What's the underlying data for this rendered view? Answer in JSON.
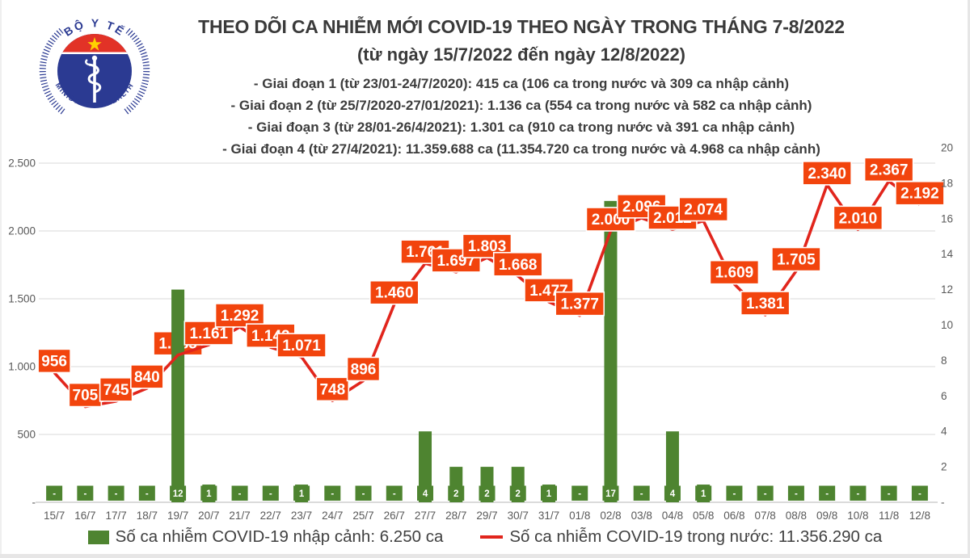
{
  "header": {
    "title": "THEO DÕI CA NHIỄM MỚI COVID-19 THEO NGÀY TRONG THÁNG 7-8/2022",
    "subtitle": "(từ ngày 15/7/2022 đến ngày 12/8/2022)",
    "phases": [
      "- Giai đoạn 1 (từ 23/01-24/7/2020): 415 ca (106 ca trong nước và 309 ca nhập cảnh)",
      "- Giai đoạn 2 (từ 25/7/2020-27/01/2021): 1.136 ca (554 ca trong nước và 582 ca nhập cảnh)",
      "- Giai đoạn 3 (từ 28/01-26/4/2021): 1.301 ca (910 ca trong nước và 391 ca nhập cảnh)",
      "- Giai đoạn 4 (từ 27/4/2021): 11.359.688 ca (11.354.720 ca trong nước và 4.968 ca nhập cảnh)"
    ]
  },
  "logo": {
    "top_text": "BỘ Y TẾ",
    "bottom_text": "MINISTRY OF HEALTH"
  },
  "legend": {
    "imported_label": "Số ca nhiễm COVID-19 nhập cảnh: 6.250 ca",
    "domestic_label": "Số ca nhiễm COVID-19 trong nước: 11.356.290 ca"
  },
  "colors": {
    "bar_green": "#4e8430",
    "line_red": "#e1251c",
    "label_orange": "#f2440d",
    "grid": "#d9d9d9",
    "axis_line": "#cfcfcf",
    "axis_text": "#595959",
    "logo_blue": "#2b3a92",
    "logo_red": "#e23227",
    "star_yellow": "#ffd200"
  },
  "chart_data": {
    "type": "bar",
    "subtype": "combo-bar-line",
    "categories": [
      "15/7",
      "16/7",
      "17/7",
      "18/7",
      "19/7",
      "20/7",
      "21/7",
      "22/7",
      "23/7",
      "24/7",
      "25/7",
      "26/7",
      "27/7",
      "28/7",
      "29/7",
      "30/7",
      "31/7",
      "01/8",
      "02/8",
      "03/8",
      "04/8",
      "05/8",
      "06/8",
      "07/8",
      "08/8",
      "09/8",
      "10/8",
      "11/8",
      "12/8"
    ],
    "series": [
      {
        "name": "Số ca nhiễm COVID-19 nhập cảnh",
        "type": "bar",
        "axis": "right",
        "values": [
          0,
          0,
          0,
          0,
          12,
          1,
          0,
          0,
          1,
          0,
          0,
          0,
          4,
          2,
          2,
          2,
          1,
          0,
          17,
          0,
          4,
          1,
          0,
          0,
          0,
          0,
          0,
          0,
          0
        ],
        "labels": [
          "-",
          "-",
          "-",
          "-",
          "12",
          "1",
          "-",
          "-",
          "1",
          "-",
          "-",
          "-",
          "4",
          "2",
          "2",
          "2",
          "1",
          "-",
          "17",
          "-",
          "4",
          "1",
          "-",
          "-",
          "-",
          "-",
          "-",
          "-",
          "-"
        ]
      },
      {
        "name": "Số ca nhiễm COVID-19 trong nước",
        "type": "line",
        "axis": "left",
        "values": [
          956,
          705,
          745,
          840,
          1085,
          1161,
          1292,
          1142,
          1071,
          748,
          896,
          1460,
          1761,
          1697,
          1803,
          1668,
          1477,
          1377,
          2000,
          2096,
          2012,
          2074,
          1609,
          1381,
          1705,
          2340,
          2010,
          2367,
          2192
        ],
        "labels": [
          "956",
          "705",
          "745",
          "840",
          "1.085",
          "1.161",
          "1.292",
          "1.142",
          "1.071",
          "748",
          "896",
          "1.460",
          "1.761",
          "1.697",
          "1.803",
          "1.668",
          "1.477",
          "1.377",
          "2.000",
          "2.096",
          "2.012",
          "2.074",
          "1.609",
          "1.381",
          "1.705",
          "2.340",
          "2.010",
          "2.367",
          "2.192"
        ]
      }
    ],
    "left_axis": {
      "ticks": [
        "-",
        "500",
        "1.000",
        "1.500",
        "2.000",
        "2.500"
      ],
      "min": 0,
      "max": 2500,
      "step": 500
    },
    "right_axis": {
      "ticks": [
        "-",
        "2",
        "4",
        "6",
        "8",
        "10",
        "12",
        "14",
        "16",
        "18",
        "20"
      ],
      "min": 0,
      "max": 20,
      "step": 2
    },
    "grid": true,
    "legend_position": "bottom",
    "layout": {
      "labels_behind_bars": [
        4
      ]
    }
  }
}
